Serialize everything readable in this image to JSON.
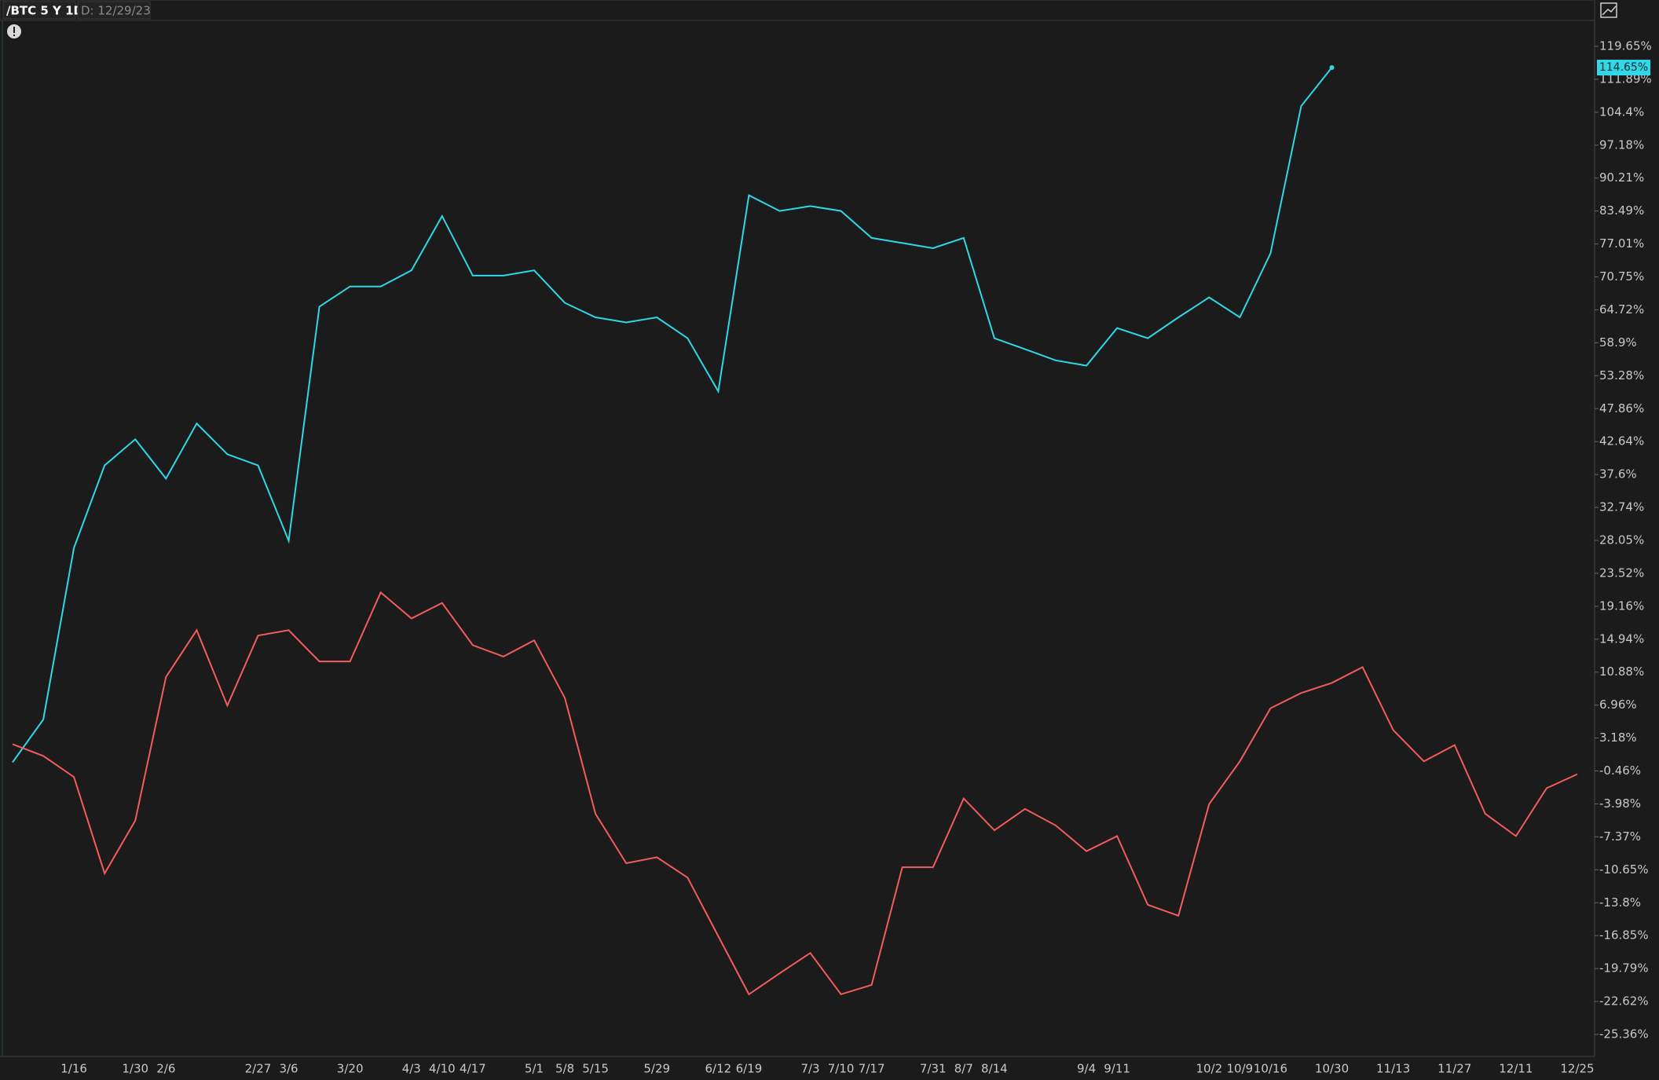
{
  "chart_data": {
    "type": "line",
    "title": "/BTC 5 Y 1D",
    "subtitle": "D: 12/29/23",
    "categories": [
      null,
      null,
      "1/16",
      null,
      "1/30",
      "2/6",
      null,
      null,
      "2/27",
      "3/6",
      null,
      "3/20",
      null,
      "4/3",
      "4/10",
      "4/17",
      null,
      "5/1",
      "5/8",
      "5/15",
      null,
      "5/29",
      null,
      "6/12",
      "6/19",
      null,
      "7/3",
      "7/10",
      "7/17",
      null,
      "7/31",
      "8/7",
      "8/14",
      null,
      null,
      "9/4",
      "9/11",
      null,
      null,
      "10/2",
      "10/9",
      "10/16",
      null,
      "10/30",
      null,
      "11/13",
      null,
      "11/27",
      null,
      "12/11",
      null,
      "12/25"
    ],
    "series": [
      {
        "color": "#2ed8e6",
        "last_label": "114.65%",
        "values": [
          0.5,
          5.3,
          27,
          39,
          43,
          37,
          45.5,
          40.7,
          39,
          28,
          65.3,
          69,
          69,
          72,
          82.5,
          71,
          71,
          72,
          66,
          63.4,
          62.5,
          63.4,
          59.7,
          50.7,
          86.7,
          83.5,
          84.5,
          83.5,
          78.2,
          77.2,
          76.2,
          78.2,
          59.7,
          57.8,
          55.9,
          55,
          61.5,
          59.7,
          63.4,
          67,
          63.4,
          75.2,
          105.8,
          114.65,
          null,
          null,
          null,
          null,
          null,
          null,
          null,
          null
        ]
      },
      {
        "color": "#f25c5c",
        "values": [
          2.5,
          1.2,
          -1.1,
          -11,
          -5.7,
          10.3,
          16.1,
          6.9,
          15.4,
          16.1,
          12.2,
          12.2,
          21,
          17.6,
          19.6,
          14.2,
          12.8,
          14.8,
          7.8,
          -5,
          -10,
          -9.4,
          -11.4,
          -16.9,
          -22,
          -20.2,
          -18.4,
          -22,
          -21.2,
          -10.4,
          -10.4,
          -3.4,
          -6.7,
          -4.5,
          -6.2,
          -8.8,
          -7.3,
          -14,
          -15,
          -4,
          0.6,
          6.6,
          8.4,
          9.6,
          11.5,
          4.1,
          0.6,
          2.4,
          -5,
          -7.3,
          -2.3,
          -0.8
        ]
      }
    ],
    "ylim": [
      -27.2,
      125.6
    ],
    "yticks": [
      {
        "value": 119.65,
        "label": "119.65%"
      },
      {
        "value": 111.89,
        "label": "111.89%"
      },
      {
        "value": 104.4,
        "label": "104.4%"
      },
      {
        "value": 97.18,
        "label": "97.18%"
      },
      {
        "value": 90.21,
        "label": "90.21%"
      },
      {
        "value": 83.49,
        "label": "83.49%"
      },
      {
        "value": 77.01,
        "label": "77.01%"
      },
      {
        "value": 70.75,
        "label": "70.75%"
      },
      {
        "value": 64.72,
        "label": "64.72%"
      },
      {
        "value": 58.9,
        "label": "58.9%"
      },
      {
        "value": 53.28,
        "label": "53.28%"
      },
      {
        "value": 47.86,
        "label": "47.86%"
      },
      {
        "value": 42.64,
        "label": "42.64%"
      },
      {
        "value": 37.6,
        "label": "37.6%"
      },
      {
        "value": 32.74,
        "label": "32.74%"
      },
      {
        "value": 28.05,
        "label": "28.05%"
      },
      {
        "value": 23.52,
        "label": "23.52%"
      },
      {
        "value": 19.16,
        "label": "19.16%"
      },
      {
        "value": 14.94,
        "label": "14.94%"
      },
      {
        "value": 10.88,
        "label": "10.88%"
      },
      {
        "value": 6.96,
        "label": "6.96%"
      },
      {
        "value": 3.18,
        "label": "3.18%"
      },
      {
        "value": -0.46,
        "label": "-0.46%"
      },
      {
        "value": -3.98,
        "label": "-3.98%"
      },
      {
        "value": -7.37,
        "label": "-7.37%"
      },
      {
        "value": -10.65,
        "label": "-10.65%"
      },
      {
        "value": -13.8,
        "label": "-13.8%"
      },
      {
        "value": -16.85,
        "label": "-16.85%"
      },
      {
        "value": -19.79,
        "label": "-19.79%"
      },
      {
        "value": -22.62,
        "label": "-22.62%"
      },
      {
        "value": -25.36,
        "label": "-25.36%"
      }
    ],
    "grid": false
  }
}
